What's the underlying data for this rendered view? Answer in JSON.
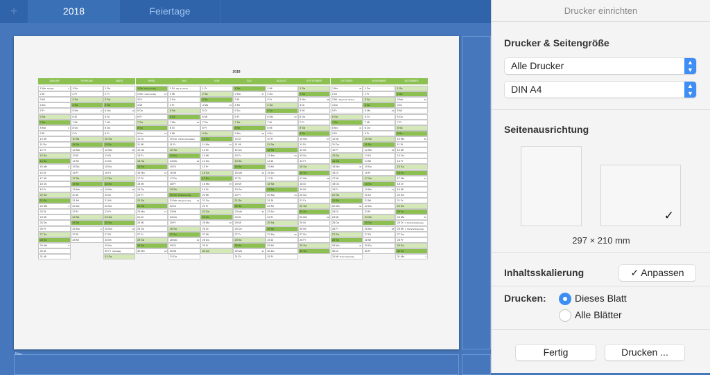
{
  "tabs": {
    "add": "+",
    "active": "2018",
    "second": "Feiertage"
  },
  "sheet": {
    "bottom_label": "Neu"
  },
  "calendar": {
    "title": "2018",
    "months": [
      {
        "name": "Januar",
        "days": "Mo Di Mi Do Fr Sa So Mo Di Mi Do Fr Sa So Mo Di Mi Do Fr Sa So Mo Di Mi Do Fr Sa So Mo Di Mi",
        "kw": {
          "1": "1",
          "8": "2",
          "15": "3",
          "22": "4",
          "29": "5"
        },
        "holidays": {
          "1": "Neujahr"
        }
      },
      {
        "name": "Februar",
        "days": "Do Fr Sa So Mo Di Mi Do Fr Sa So Mo Di Mi Do Fr Sa So Mo Di Mi Do Fr Sa So Mo Di Mi",
        "kw": {
          "5": "6",
          "12": "7",
          "19": "8",
          "26": "9"
        },
        "holidays": {}
      },
      {
        "name": "März",
        "days": "Do Fr Sa So Mo Di Mi Do Fr Sa So Mo Di Mi Do Fr Sa So Mo Di Mi Do Fr Sa So Mo Di Mi Do Fr Sa",
        "kw": {
          "5": "10",
          "12": "11",
          "19": "12",
          "26": "13"
        },
        "holidays": {
          "30": "Karfreitag"
        }
      },
      {
        "name": "April",
        "days": "So Mo Di Mi Do Fr Sa So Mo Di Mi Do Fr Sa So Mo Di Mi Do Fr Sa So Mo Di Mi Do Fr Sa So Mo",
        "kw": {
          "2": "14",
          "9": "15",
          "16": "16",
          "23": "17",
          "30": "18"
        },
        "holidays": {
          "1": "Ostersonntag",
          "2": "Ostermontag"
        }
      },
      {
        "name": "Mai",
        "days": "Di Mi Do Fr Sa So Mo Di Mi Do Fr Sa So Mo Di Mi Do Fr Sa So Mo Di Mi Do Fr Sa So Mo Di Mi Do",
        "kw": {
          "7": "19",
          "14": "20",
          "21": "21",
          "28": "22"
        },
        "holidays": {
          "1": "Tag der Arbeit",
          "10": "Christi Himmelfahrt",
          "20": "Pfingstsonntag",
          "21": "Pfingstmontag"
        }
      },
      {
        "name": "Juni",
        "days": "Fr Sa So Mo Di Mi Do Fr Sa So Mo Di Mi Do Fr Sa So Mo Di Mi Do Fr Sa So Mo Di Mi Do Fr Sa",
        "kw": {
          "4": "23",
          "11": "24",
          "18": "25",
          "25": "26"
        },
        "holidays": {}
      },
      {
        "name": "Juli",
        "days": "So Mo Di Mi Do Fr Sa So Mo Di Mi Do Fr Sa So Mo Di Mi Do Fr Sa So Mo Di Mi Do Fr Sa So Mo Di",
        "kw": {
          "2": "27",
          "9": "28",
          "16": "29",
          "23": "30",
          "30": "31"
        },
        "holidays": {}
      },
      {
        "name": "August",
        "days": "Mi Do Fr Sa So Mo Di Mi Do Fr Sa So Mo Di Mi Do Fr Sa So Mo Di Mi Do Fr Sa So Mo Di Mi Do Fr",
        "kw": {
          "6": "32",
          "13": "33",
          "20": "34",
          "27": "35"
        },
        "holidays": {}
      },
      {
        "name": "September",
        "days": "Sa So Mo Di Mi Do Fr Sa So Mo Di Mi Do Fr Sa So Mo Di Mi Do Fr Sa So Mo Di Mi Do Fr Sa So",
        "kw": {
          "3": "36",
          "10": "37",
          "17": "38",
          "24": "39"
        },
        "holidays": {}
      },
      {
        "name": "Oktober",
        "days": "Mo Di Mi Do Fr Sa So Mo Di Mi Do Fr Sa So Mo Di Mi Do Fr Sa So Mo Di Mi Do Fr Sa So Mo Di Mi",
        "kw": {
          "1": "40",
          "8": "41",
          "15": "42",
          "22": "43",
          "29": "44"
        },
        "holidays": {
          "3": "Tag der Dt. Einheit",
          "31": "Reformationstag"
        }
      },
      {
        "name": "November",
        "days": "Do Fr Sa So Mo Di Mi Do Fr Sa So Mo Di Mi Do Fr Sa So Mo Di Mi Do Fr Sa So Mo Di Mi Do Fr",
        "kw": {
          "5": "45",
          "12": "46",
          "19": "47",
          "26": "48"
        },
        "holidays": {}
      },
      {
        "name": "Dezember",
        "days": "Sa So Mo Di Mi Do Fr Sa So Mo Di Mi Do Fr Sa So Mo Di Mi Do Fr Sa So Mo Di Mi Do Fr Sa So Mo",
        "kw": {
          "3": "49",
          "10": "50",
          "17": "51",
          "24": "52",
          "31": "1"
        },
        "holidays": {
          "25": "1. Weihnachtsfeiertag",
          "26": "2. Weihnachtsfeiertag"
        }
      }
    ],
    "colors": {
      "header": "#8cc152",
      "saturday": "#d4e8b8",
      "sunday": "#8cc152"
    }
  },
  "panel": {
    "title": "Drucker einrichten",
    "printer_section": "Drucker & Seitengröße",
    "printer": "Alle Drucker",
    "paper": "DIN A4",
    "orientation_section": "Seitenausrichtung",
    "orientation_selected": "landscape",
    "checkmark": "✓",
    "paper_size": "297 × 210 mm",
    "scaling_label": "Inhaltsskalierung",
    "scaling_value": "✓ Anpassen",
    "print_label": "Drucken:",
    "print_options": [
      "Dieses Blatt",
      "Alle Blätter"
    ],
    "print_selected": "Dieses Blatt",
    "done": "Fertig",
    "print_button": "Drucken ...",
    "accent": "#3d8ef3"
  }
}
